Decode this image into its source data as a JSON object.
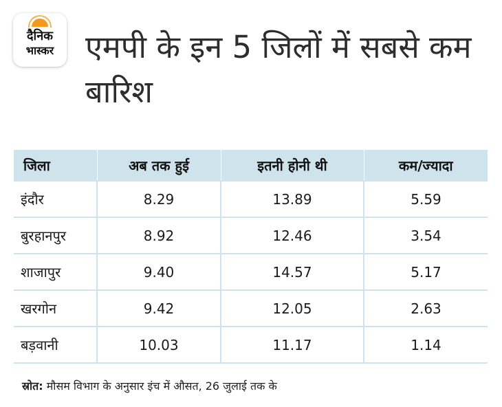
{
  "logo": {
    "line1": "दैनिक",
    "line2": "भास्कर"
  },
  "title": "एमपी के इन 5 जिलों में सबसे कम बारिश",
  "chart_data": {
    "type": "table",
    "columns": [
      "जिला",
      "अब तक हुई",
      "इतनी होनी थी",
      "कम/ज्यादा"
    ],
    "rows": [
      [
        "इंदौर",
        "8.29",
        "13.89",
        "5.59"
      ],
      [
        "बुरहानपुर",
        "8.92",
        "12.46",
        "3.54"
      ],
      [
        "शाजापुर",
        "9.40",
        "14.57",
        "5.17"
      ],
      [
        "खरगोन",
        "9.42",
        "12.05",
        "2.63"
      ],
      [
        "बड़वानी",
        "10.03",
        "11.17",
        "1.14"
      ]
    ]
  },
  "source": {
    "label": "स्रोत:",
    "text": " मौसम विभाग के अनुसार इंच में औसत, 26 जुलाई तक के"
  },
  "colors": {
    "header_bg": "#cfe3ed",
    "logo_accent": "#f39a1e"
  }
}
